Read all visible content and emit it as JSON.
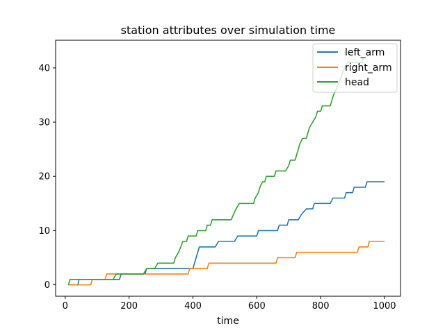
{
  "chart_data": {
    "type": "line",
    "title": "station attributes over simulation time",
    "xlabel": "time",
    "ylabel": "",
    "xlim": [
      -30,
      1050
    ],
    "ylim": [
      -2.1,
      45.1
    ],
    "xticks": [
      0,
      200,
      400,
      600,
      800,
      1000
    ],
    "yticks": [
      0,
      10,
      20,
      30,
      40
    ],
    "grid": false,
    "legend_position": "top-right",
    "series": [
      {
        "name": "left_arm",
        "color": "#1f77b4",
        "points": [
          [
            10,
            0
          ],
          [
            40,
            0
          ],
          [
            43,
            1
          ],
          [
            170,
            1
          ],
          [
            175,
            2
          ],
          [
            250,
            2
          ],
          [
            255,
            3
          ],
          [
            400,
            3
          ],
          [
            410,
            5
          ],
          [
            420,
            7
          ],
          [
            470,
            7
          ],
          [
            480,
            8
          ],
          [
            530,
            8
          ],
          [
            540,
            9
          ],
          [
            600,
            9
          ],
          [
            605,
            10
          ],
          [
            665,
            10
          ],
          [
            670,
            11
          ],
          [
            695,
            11
          ],
          [
            700,
            12
          ],
          [
            730,
            12
          ],
          [
            740,
            13
          ],
          [
            755,
            14
          ],
          [
            775,
            14
          ],
          [
            780,
            15
          ],
          [
            830,
            15
          ],
          [
            838,
            16
          ],
          [
            875,
            16
          ],
          [
            880,
            17
          ],
          [
            900,
            17
          ],
          [
            905,
            18
          ],
          [
            940,
            18
          ],
          [
            945,
            19
          ],
          [
            1000,
            19
          ]
        ]
      },
      {
        "name": "right_arm",
        "color": "#ff7f0e",
        "points": [
          [
            10,
            0
          ],
          [
            80,
            0
          ],
          [
            85,
            1
          ],
          [
            125,
            1
          ],
          [
            130,
            2
          ],
          [
            385,
            2
          ],
          [
            390,
            3
          ],
          [
            445,
            3
          ],
          [
            450,
            4
          ],
          [
            660,
            4
          ],
          [
            665,
            5
          ],
          [
            720,
            5
          ],
          [
            725,
            6
          ],
          [
            915,
            6
          ],
          [
            920,
            7
          ],
          [
            948,
            7
          ],
          [
            952,
            8
          ],
          [
            1000,
            8
          ]
        ]
      },
      {
        "name": "head",
        "color": "#2ca02c",
        "points": [
          [
            10,
            0
          ],
          [
            15,
            1
          ],
          [
            150,
            1
          ],
          [
            160,
            2
          ],
          [
            245,
            2
          ],
          [
            255,
            3
          ],
          [
            280,
            3
          ],
          [
            290,
            4
          ],
          [
            340,
            4
          ],
          [
            345,
            5
          ],
          [
            355,
            6
          ],
          [
            362,
            7
          ],
          [
            368,
            8
          ],
          [
            380,
            8
          ],
          [
            385,
            9
          ],
          [
            410,
            9
          ],
          [
            415,
            10
          ],
          [
            440,
            10
          ],
          [
            445,
            11
          ],
          [
            455,
            11
          ],
          [
            460,
            12
          ],
          [
            520,
            12
          ],
          [
            527,
            13
          ],
          [
            535,
            14
          ],
          [
            545,
            15
          ],
          [
            590,
            15
          ],
          [
            595,
            16
          ],
          [
            605,
            17
          ],
          [
            610,
            18
          ],
          [
            618,
            19
          ],
          [
            625,
            19
          ],
          [
            630,
            20
          ],
          [
            655,
            20
          ],
          [
            660,
            21
          ],
          [
            690,
            21
          ],
          [
            700,
            22
          ],
          [
            705,
            23
          ],
          [
            720,
            23
          ],
          [
            725,
            24
          ],
          [
            730,
            25
          ],
          [
            735,
            26
          ],
          [
            743,
            27
          ],
          [
            755,
            27
          ],
          [
            760,
            28
          ],
          [
            765,
            29
          ],
          [
            775,
            30
          ],
          [
            785,
            31
          ],
          [
            790,
            32
          ],
          [
            800,
            32
          ],
          [
            805,
            33
          ],
          [
            830,
            33
          ],
          [
            835,
            34
          ],
          [
            840,
            35
          ],
          [
            848,
            36
          ],
          [
            855,
            37
          ],
          [
            862,
            38
          ],
          [
            868,
            39
          ],
          [
            875,
            40
          ],
          [
            883,
            41
          ],
          [
            930,
            41
          ],
          [
            934,
            42
          ]
        ]
      }
    ]
  }
}
